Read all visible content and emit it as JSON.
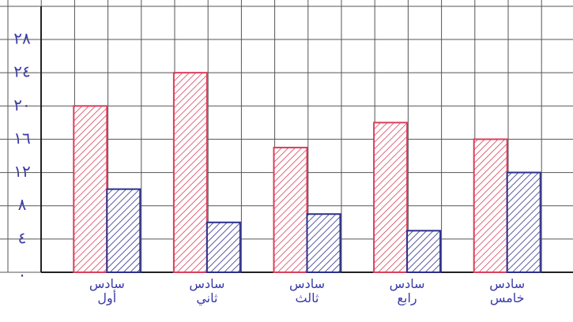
{
  "chart_data": {
    "type": "bar",
    "categories": [
      "سادس أول",
      "سادس ثاني",
      "سادس ثالث",
      "سادس رابع",
      "سادس خامس"
    ],
    "series": [
      {
        "color": "#d8405c",
        "values": [
          20,
          24,
          15,
          18,
          16
        ]
      },
      {
        "color": "#2b2f8c",
        "values": [
          10,
          6,
          7,
          5,
          12
        ]
      }
    ],
    "ylim": [
      0,
      28
    ],
    "yticks": [
      {
        "value": 0,
        "label": "."
      },
      {
        "value": 4,
        "label": "٤"
      },
      {
        "value": 8,
        "label": "٨"
      },
      {
        "value": 12,
        "label": "١٢"
      },
      {
        "value": 16,
        "label": "١٦"
      },
      {
        "value": 20,
        "label": "٢٠"
      },
      {
        "value": 24,
        "label": "٢٤"
      },
      {
        "value": 28,
        "label": "٢٨"
      }
    ],
    "grid": true
  }
}
